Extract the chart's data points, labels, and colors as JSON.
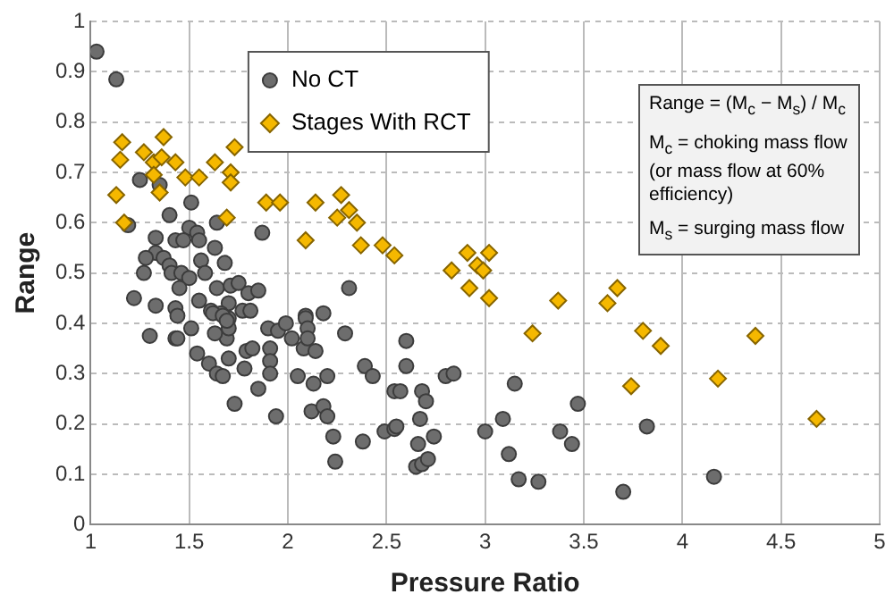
{
  "chart_data": {
    "type": "scatter",
    "xlabel": "Pressure Ratio",
    "ylabel": "Range",
    "xlim": [
      1,
      5
    ],
    "xticks": [
      1,
      1.5,
      2,
      2.5,
      3,
      3.5,
      4,
      4.5,
      5
    ],
    "ylim": [
      0,
      1
    ],
    "yticks": [
      0,
      0.1,
      0.2,
      0.3,
      0.4,
      0.5,
      0.6,
      0.7,
      0.8,
      0.9,
      1
    ],
    "grid": true,
    "legend": "top left",
    "annotations": [
      "Range = (M$_{c}$ − M$_{s}$) / M$_{c}$",
      "M$_{c}$ = choking mass flow (or mass flow at 60% efficiency)",
      "M$_{s}$ = surging mass flow"
    ],
    "series": [
      {
        "name": "No CT",
        "color": "#6d6d6d",
        "marker": "circle",
        "x": [
          1.03,
          1.13,
          1.25,
          1.35,
          1.51,
          1.19,
          1.4,
          1.5,
          1.54,
          1.64,
          1.87,
          1.33,
          1.43,
          1.47,
          1.55,
          1.63,
          1.33,
          1.28,
          1.37,
          1.56,
          1.68,
          1.4,
          1.27,
          1.41,
          1.46,
          1.5,
          1.58,
          1.45,
          1.64,
          1.71,
          1.75,
          1.8,
          1.85,
          2.31,
          1.22,
          1.55,
          1.7,
          1.33,
          1.43,
          1.61,
          1.66,
          1.77,
          1.81,
          1.44,
          2.09,
          2.18,
          1.7,
          1.51,
          1.3,
          1.43,
          1.44,
          1.54,
          1.6,
          1.64,
          1.67,
          1.7,
          1.69,
          1.7,
          1.63,
          1.62,
          1.67,
          1.69,
          1.79,
          1.82,
          1.78,
          1.73,
          1.85,
          1.9,
          1.95,
          1.99,
          1.91,
          1.91,
          1.91,
          1.94,
          2.02,
          2.05,
          2.08,
          2.09,
          2.1,
          2.1,
          2.14,
          2.13,
          2.2,
          2.12,
          2.18,
          2.2,
          2.23,
          2.24,
          2.29,
          2.39,
          2.43,
          2.38,
          2.6,
          2.6,
          2.54,
          2.57,
          2.49,
          2.54,
          2.55,
          2.68,
          2.7,
          2.67,
          2.74,
          2.66,
          2.65,
          2.68,
          2.71,
          2.8,
          2.84,
          3.15,
          3.47,
          3.09,
          3.0,
          3.38,
          3.44,
          3.12,
          3.82,
          3.17,
          3.27,
          3.7,
          4.16
        ],
        "values": [
          0.94,
          0.885,
          0.685,
          0.675,
          0.64,
          0.595,
          0.615,
          0.59,
          0.58,
          0.6,
          0.58,
          0.57,
          0.565,
          0.565,
          0.565,
          0.55,
          0.54,
          0.53,
          0.53,
          0.525,
          0.52,
          0.515,
          0.5,
          0.5,
          0.5,
          0.49,
          0.5,
          0.47,
          0.47,
          0.475,
          0.48,
          0.46,
          0.465,
          0.47,
          0.45,
          0.445,
          0.44,
          0.435,
          0.43,
          0.425,
          0.42,
          0.425,
          0.425,
          0.415,
          0.415,
          0.42,
          0.41,
          0.39,
          0.375,
          0.37,
          0.37,
          0.34,
          0.32,
          0.3,
          0.295,
          0.33,
          0.37,
          0.39,
          0.38,
          0.42,
          0.415,
          0.405,
          0.345,
          0.35,
          0.31,
          0.24,
          0.27,
          0.39,
          0.385,
          0.4,
          0.35,
          0.325,
          0.3,
          0.215,
          0.37,
          0.295,
          0.35,
          0.41,
          0.39,
          0.37,
          0.345,
          0.28,
          0.295,
          0.225,
          0.235,
          0.215,
          0.175,
          0.125,
          0.38,
          0.315,
          0.295,
          0.165,
          0.365,
          0.315,
          0.265,
          0.265,
          0.185,
          0.19,
          0.195,
          0.265,
          0.245,
          0.21,
          0.175,
          0.16,
          0.115,
          0.12,
          0.13,
          0.295,
          0.3,
          0.28,
          0.24,
          0.21,
          0.185,
          0.185,
          0.16,
          0.14,
          0.195,
          0.09,
          0.085,
          0.065,
          0.095
        ]
      },
      {
        "name": "Stages With RCT",
        "color": "#f5b800",
        "marker": "diamond",
        "x": [
          1.16,
          1.15,
          1.27,
          1.37,
          1.32,
          1.36,
          1.43,
          1.32,
          1.35,
          1.48,
          1.55,
          1.63,
          1.73,
          1.71,
          1.71,
          1.13,
          1.17,
          1.69,
          1.89,
          1.96,
          2.14,
          2.27,
          2.31,
          2.25,
          2.35,
          2.09,
          2.37,
          2.48,
          2.54,
          2.91,
          3.02,
          2.83,
          2.96,
          2.99,
          2.92,
          3.02,
          3.37,
          3.67,
          3.62,
          3.24,
          3.8,
          3.89,
          4.37,
          3.74,
          4.18,
          4.68
        ],
        "values": [
          0.76,
          0.725,
          0.74,
          0.77,
          0.72,
          0.73,
          0.72,
          0.695,
          0.66,
          0.69,
          0.69,
          0.72,
          0.75,
          0.7,
          0.68,
          0.655,
          0.6,
          0.61,
          0.64,
          0.64,
          0.64,
          0.655,
          0.625,
          0.61,
          0.6,
          0.565,
          0.555,
          0.555,
          0.535,
          0.54,
          0.54,
          0.505,
          0.515,
          0.505,
          0.47,
          0.45,
          0.445,
          0.47,
          0.44,
          0.38,
          0.385,
          0.355,
          0.375,
          0.275,
          0.29,
          0.21
        ]
      }
    ]
  }
}
